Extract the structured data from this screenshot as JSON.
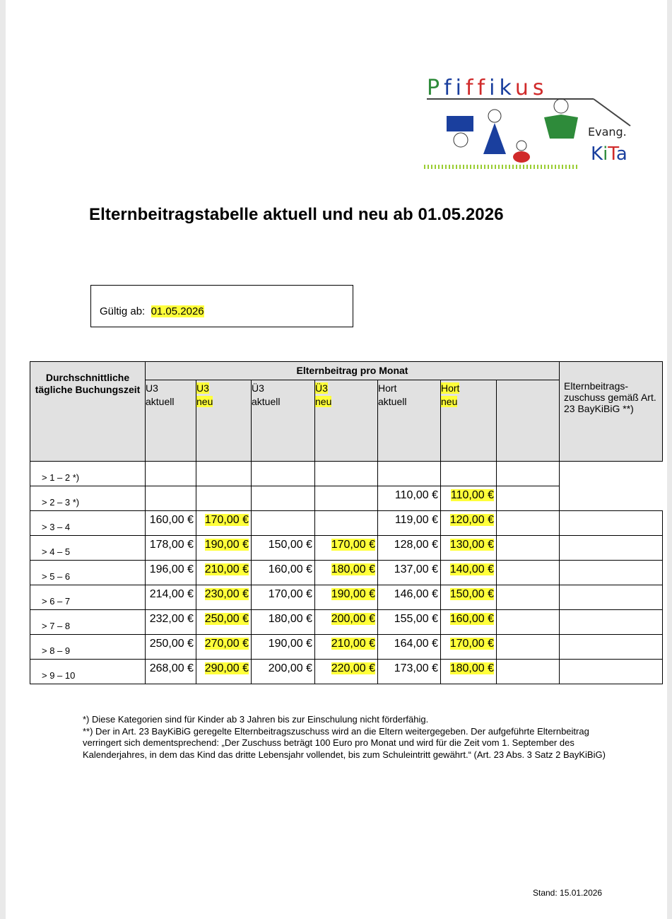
{
  "logo": {
    "name": "Pfiffikus",
    "subtitle": "Evang. KiTa",
    "colors": {
      "green": "#2e8b3a",
      "blue": "#1a3f9e",
      "red": "#d02a2a"
    }
  },
  "title": "Elternbeitragstabelle aktuell und neu ab 01.05.2026",
  "valid": {
    "label": "Gültig ab:",
    "date": "01.05.2026"
  },
  "table": {
    "col_booking": "Durchschnittliche tägliche Buchungszeit",
    "group_header": "Elternbeitrag pro Monat",
    "columns": [
      {
        "line1": "U3",
        "line2": "aktuell",
        "highlight": false
      },
      {
        "line1": "U3",
        "line2": "neu",
        "highlight": true
      },
      {
        "line1": "Ü3",
        "line2": "aktuell",
        "highlight": false
      },
      {
        "line1": "Ü3",
        "line2": "neu",
        "highlight": true
      },
      {
        "line1": "Hort",
        "line2": "aktuell",
        "highlight": false
      },
      {
        "line1": "Hort",
        "line2": "neu",
        "highlight": true
      },
      {
        "line1": "",
        "line2": "",
        "highlight": false
      }
    ],
    "col_zuschuss": "Elternbeitrags-zuschuss gemäß Art. 23 BayKiBiG **)",
    "rows": [
      {
        "label": "> 1 – 2 *)",
        "values": [
          "",
          "",
          "",
          "",
          "",
          "",
          ""
        ]
      },
      {
        "label": "> 2 – 3 *)",
        "values": [
          "",
          "",
          "",
          "",
          "110,00 €",
          "110,00 €",
          ""
        ]
      },
      {
        "label": "> 3 – 4",
        "values": [
          "160,00 €",
          "170,00 €",
          "",
          "",
          "119,00 €",
          "120,00 €",
          ""
        ]
      },
      {
        "label": "> 4 – 5",
        "values": [
          "178,00 €",
          "190,00 €",
          "150,00 €",
          "170,00 €",
          "128,00 €",
          "130,00 €",
          ""
        ]
      },
      {
        "label": "> 5 – 6",
        "values": [
          "196,00 €",
          "210,00 €",
          "160,00 €",
          "180,00 €",
          "137,00 €",
          "140,00 €",
          ""
        ]
      },
      {
        "label": "> 6 – 7",
        "values": [
          "214,00 €",
          "230,00 €",
          "170,00 €",
          "190,00 €",
          "146,00 €",
          "150,00 €",
          ""
        ]
      },
      {
        "label": "> 7 – 8",
        "values": [
          "232,00 €",
          "250,00 €",
          "180,00 €",
          "200,00 €",
          "155,00 €",
          "160,00 €",
          ""
        ]
      },
      {
        "label": "> 8 – 9",
        "values": [
          "250,00 €",
          "270,00 €",
          "190,00 €",
          "210,00 €",
          "164,00 €",
          "170,00 €",
          ""
        ]
      },
      {
        "label": "> 9 – 10",
        "values": [
          "268,00 €",
          "290,00 €",
          "200,00 €",
          "220,00 €",
          "173,00 €",
          "180,00 €",
          ""
        ]
      }
    ]
  },
  "notes": [
    "*) Diese Kategorien sind für Kinder ab 3 Jahren bis zur Einschulung nicht förderfähig.",
    "**) Der in Art. 23 BayKiBiG geregelte Elternbeitragszuschuss wird an die Eltern weitergegeben. Der aufgeführte Elternbeitrag verringert sich dementsprechend: „Der Zuschuss beträgt 100 Euro pro Monat und wird für die Zeit vom 1. September des Kalenderjahres, in dem das Kind das dritte Lebensjahr vollendet, bis zum Schuleintritt gewährt.“ (Art. 23 Abs. 3 Satz 2 BayKiBiG)"
  ],
  "stand": "Stand: 15.01.2026"
}
